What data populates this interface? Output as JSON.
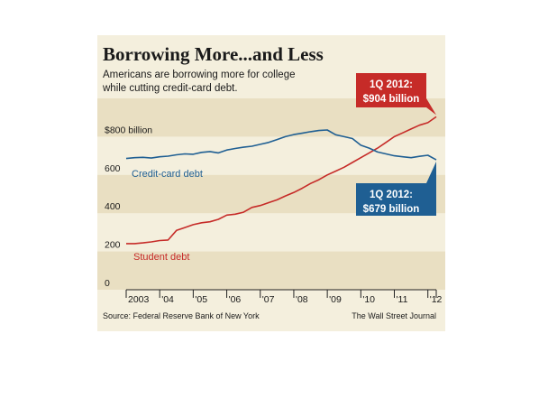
{
  "colors": {
    "background": "#f4efdd",
    "band": "#e9dfc2",
    "student": "#c62b28",
    "credit": "#1f5f93",
    "axis": "#222222"
  },
  "chart_data": {
    "type": "line",
    "title": "Borrowing More...and Less",
    "subtitle": [
      "Americans are borrowing more for college",
      "while cutting credit-card debt."
    ],
    "x_tick_labels": [
      "2003",
      "'04",
      "'05",
      "'06",
      "'07",
      "'08",
      "'09",
      "'10",
      "'11",
      "'12"
    ],
    "xlim": [
      2003,
      2012.25
    ],
    "ylim": [
      0,
      1000
    ],
    "y_ticks": [
      {
        "value": 0,
        "label": "0"
      },
      {
        "value": 200,
        "label": "200"
      },
      {
        "value": 400,
        "label": "400"
      },
      {
        "value": 600,
        "label": "600"
      },
      {
        "value": 800,
        "label": "$800 billion"
      }
    ],
    "grid": false,
    "series": [
      {
        "name": "Student debt",
        "color": "#c62b28",
        "x": [
          2003.0,
          2003.25,
          2003.5,
          2003.75,
          2004.0,
          2004.25,
          2004.5,
          2004.75,
          2005.0,
          2005.25,
          2005.5,
          2005.75,
          2006.0,
          2006.25,
          2006.5,
          2006.75,
          2007.0,
          2007.25,
          2007.5,
          2007.75,
          2008.0,
          2008.25,
          2008.5,
          2008.75,
          2009.0,
          2009.25,
          2009.5,
          2009.75,
          2010.0,
          2010.25,
          2010.5,
          2010.75,
          2011.0,
          2011.25,
          2011.5,
          2011.75,
          2012.0,
          2012.25
        ],
        "y": [
          241,
          241,
          245,
          250,
          257,
          260,
          310,
          325,
          340,
          350,
          355,
          368,
          390,
          395,
          405,
          430,
          440,
          455,
          470,
          490,
          508,
          530,
          555,
          575,
          600,
          620,
          640,
          665,
          690,
          715,
          740,
          770,
          800,
          820,
          840,
          860,
          873,
          904
        ]
      },
      {
        "name": "Credit-card debt",
        "color": "#1f5f93",
        "x": [
          2003.0,
          2003.25,
          2003.5,
          2003.75,
          2004.0,
          2004.25,
          2004.5,
          2004.75,
          2005.0,
          2005.25,
          2005.5,
          2005.75,
          2006.0,
          2006.25,
          2006.5,
          2006.75,
          2007.0,
          2007.25,
          2007.5,
          2007.75,
          2008.0,
          2008.25,
          2008.5,
          2008.75,
          2009.0,
          2009.25,
          2009.5,
          2009.75,
          2010.0,
          2010.25,
          2010.5,
          2010.75,
          2011.0,
          2011.25,
          2011.5,
          2011.75,
          2012.0,
          2012.25
        ],
        "y": [
          686,
          690,
          692,
          688,
          695,
          698,
          705,
          710,
          708,
          718,
          722,
          715,
          730,
          738,
          745,
          750,
          760,
          770,
          785,
          800,
          811,
          818,
          826,
          832,
          835,
          810,
          800,
          790,
          755,
          740,
          720,
          710,
          700,
          695,
          690,
          697,
          703,
          679
        ]
      }
    ],
    "annotations": {
      "student_label": "Student debt",
      "credit_label": "Credit-card debt",
      "student_callout": [
        "1Q 2012:",
        "$904 billion"
      ],
      "credit_callout": [
        "1Q 2012:",
        "$679 billion"
      ]
    },
    "source": "Source: Federal Reserve Bank of New York",
    "credit": "The Wall Street Journal"
  }
}
